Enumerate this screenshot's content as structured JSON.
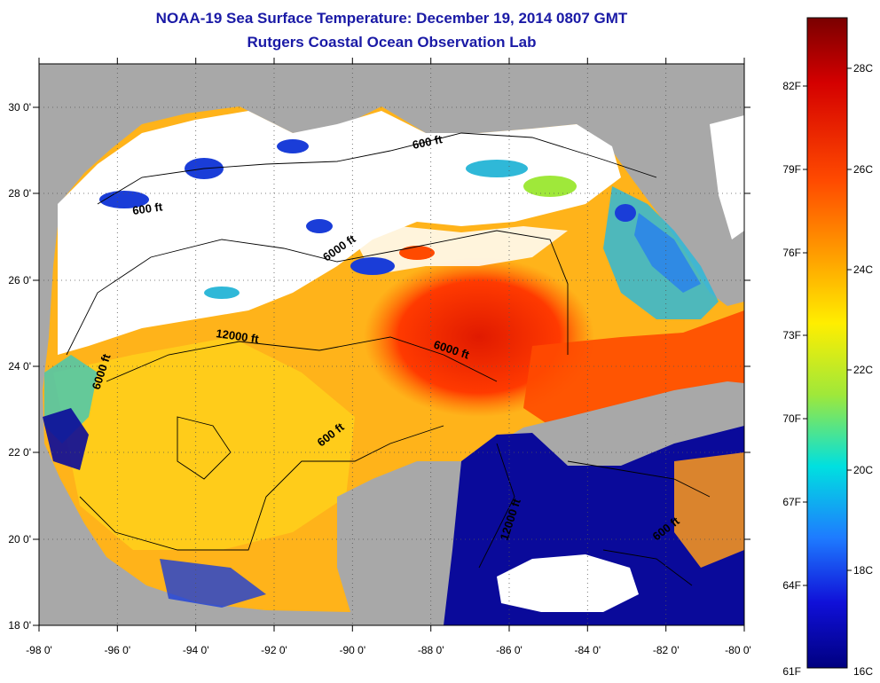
{
  "title": "NOAA-19 Sea Surface Temperature:  December 19, 2014 0807 GMT",
  "subtitle": "Rutgers Coastal Ocean Observation Lab",
  "map": {
    "lon_range": [
      -98,
      -80
    ],
    "lat_range": [
      18,
      31
    ],
    "lon_ticks": [
      "-98 0'",
      "-96 0'",
      "-94 0'",
      "-92 0'",
      "-90 0'",
      "-88 0'",
      "-86 0'",
      "-84 0'",
      "-82 0'",
      "-80 0'"
    ],
    "lat_ticks": [
      "30 0'",
      "28 0'",
      "26 0'",
      "24 0'",
      "22 0'",
      "20 0'",
      "18 0'"
    ],
    "land_color": "#a8a8a8",
    "cloud_color": "#ffffff",
    "contour_labels": [
      "600 ft",
      "600 ft",
      "6000 ft",
      "12000 ft",
      "6000 ft",
      "6000 ft",
      "600 ft",
      "12000 ft",
      "600 ft"
    ]
  },
  "colorbar": {
    "min_c": 16,
    "max_c": 29,
    "celsius_labels": [
      "28C",
      "26C",
      "24C",
      "22C",
      "20C",
      "18C",
      "16C"
    ],
    "fahrenheit_labels": [
      "82F",
      "79F",
      "76F",
      "73F",
      "70F",
      "67F",
      "64F",
      "61F"
    ],
    "top_color": "#7a0000",
    "bottom_color": "#000080"
  }
}
